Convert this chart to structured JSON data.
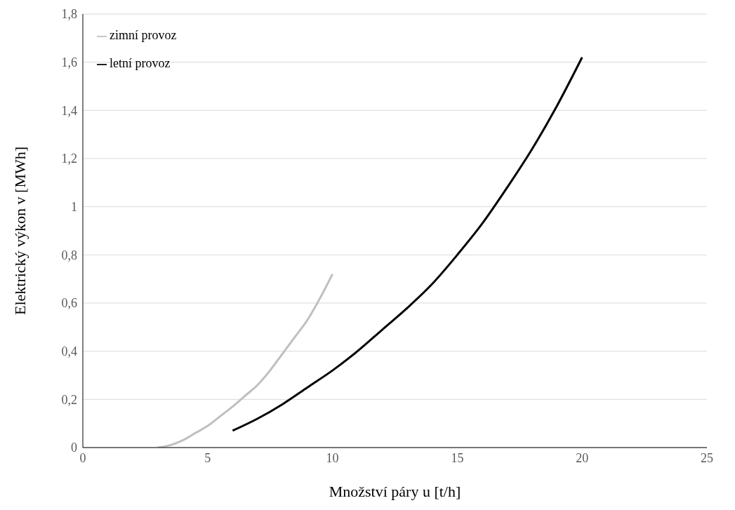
{
  "chart_data": {
    "type": "line",
    "xlabel": "Množství páry u [t/h]",
    "ylabel": "Elektrický výkon v [MWh]",
    "xlim": [
      0,
      25
    ],
    "xticks": [
      0,
      5,
      10,
      15,
      20,
      25
    ],
    "ylim": [
      0,
      1.8
    ],
    "yticks": [
      0,
      {
        "value": 0.2,
        "label": "0,2"
      },
      {
        "value": 0.4,
        "label": "0,4"
      },
      {
        "value": 0.6,
        "label": "0,6"
      },
      {
        "value": 0.8,
        "label": "0,8"
      },
      1,
      {
        "value": 1.2,
        "label": "1,2"
      },
      {
        "value": 1.4,
        "label": "1,4"
      },
      {
        "value": 1.6,
        "label": "1,6"
      },
      {
        "value": 1.8,
        "label": "1,8"
      }
    ],
    "grid": "y",
    "legend": "top left",
    "marker": "none",
    "line_style": "solid",
    "series": [
      {
        "name": "zimní provoz",
        "color": "#bfbfbf",
        "x": [
          3,
          3.5,
          4,
          4.5,
          5,
          5.5,
          6,
          6.5,
          7,
          7.5,
          8,
          8.5,
          9,
          9.5,
          10
        ],
        "values": [
          0,
          0.01,
          0.03,
          0.06,
          0.09,
          0.13,
          0.17,
          0.215,
          0.26,
          0.32,
          0.39,
          0.46,
          0.53,
          0.62,
          0.72
        ]
      },
      {
        "name": "letní provoz",
        "color": "#000000",
        "x": [
          6,
          7,
          8,
          9,
          10,
          11,
          12,
          13,
          14,
          15,
          16,
          17,
          18,
          19,
          20
        ],
        "values": [
          0.07,
          0.12,
          0.18,
          0.25,
          0.32,
          0.4,
          0.49,
          0.58,
          0.68,
          0.8,
          0.93,
          1.08,
          1.24,
          1.42,
          1.62
        ]
      }
    ]
  }
}
